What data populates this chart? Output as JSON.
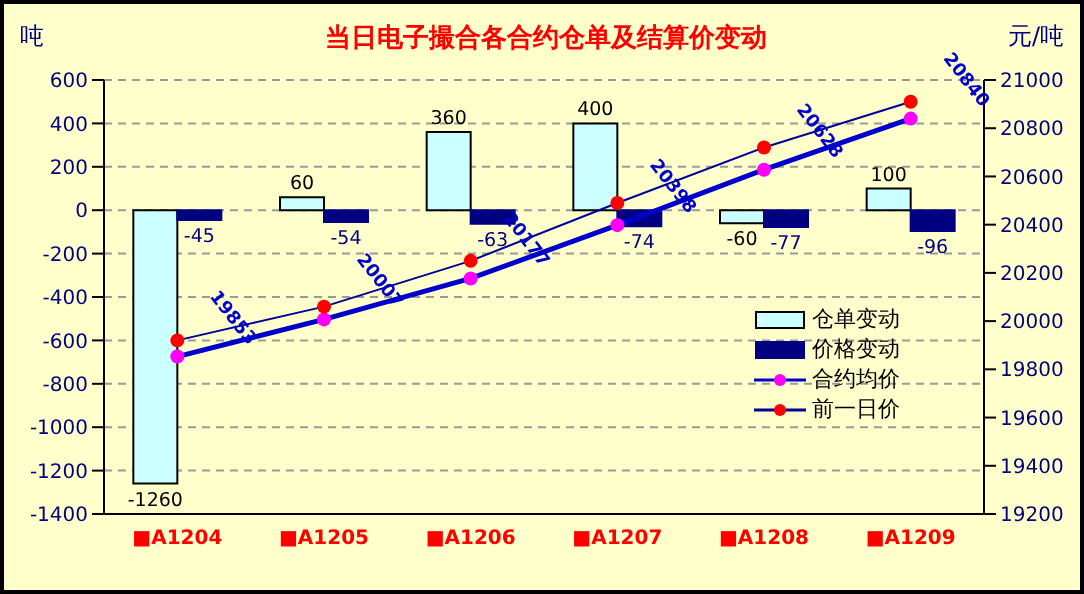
{
  "chart_data": {
    "type": "bar",
    "title": "当日电子撮合各合约仓单及结算价变动",
    "ylabel": "吨",
    "y2label": "元/吨",
    "categories": [
      "■A1204",
      "■A1205",
      "■A1206",
      "■A1207",
      "■A1208",
      "■A1209"
    ],
    "series": [
      {
        "name": "仓单变动",
        "color": "#ccffff",
        "values": [
          -1260,
          60,
          360,
          400,
          -60,
          100
        ],
        "value_labels": [
          "-1260",
          "60",
          "360",
          "400",
          "-60",
          "100"
        ]
      },
      {
        "name": "价格变动",
        "color": "#000080",
        "values": [
          -45,
          -54,
          -63,
          -74,
          -77,
          -96
        ],
        "value_labels": [
          "-45",
          "-54",
          "-63",
          "-74",
          "-77",
          "-96"
        ]
      },
      {
        "name": "合约均价",
        "type": "line",
        "axis": "y2",
        "color": "#0000cc",
        "colors": [
          "#ff00ff",
          "#ff00ff",
          "#ff00ff",
          "#ff00ff",
          "#ff00ff",
          "#ff00ff"
        ],
        "values": [
          19853,
          20007,
          20177,
          20398,
          20628,
          20840
        ],
        "value_labels": [
          "19853",
          "20007",
          "20177",
          "20398",
          "20628",
          "20840"
        ]
      },
      {
        "name": "前一日价",
        "type": "line",
        "axis": "y2",
        "color": "#000099",
        "colors": [
          "#ff0000",
          "#ff0000",
          "#ff0000",
          "#ff0000",
          "#ff0000",
          "#ff0000"
        ],
        "values": [
          19920,
          20060,
          20250,
          20490,
          20720,
          20910
        ]
      }
    ],
    "ylim": [
      -1400,
      600
    ],
    "yticks": [
      -1400,
      -1200,
      -1000,
      -800,
      -600,
      -400,
      -200,
      0,
      200,
      400,
      600
    ],
    "y2lim": [
      19200,
      21000
    ],
    "y2ticks": [
      19200,
      19400,
      19600,
      19800,
      20000,
      20200,
      20400,
      20600,
      20800,
      21000
    ],
    "grid": "y",
    "legend": "bottom right",
    "marker": "circle",
    "line_style": "solid"
  }
}
